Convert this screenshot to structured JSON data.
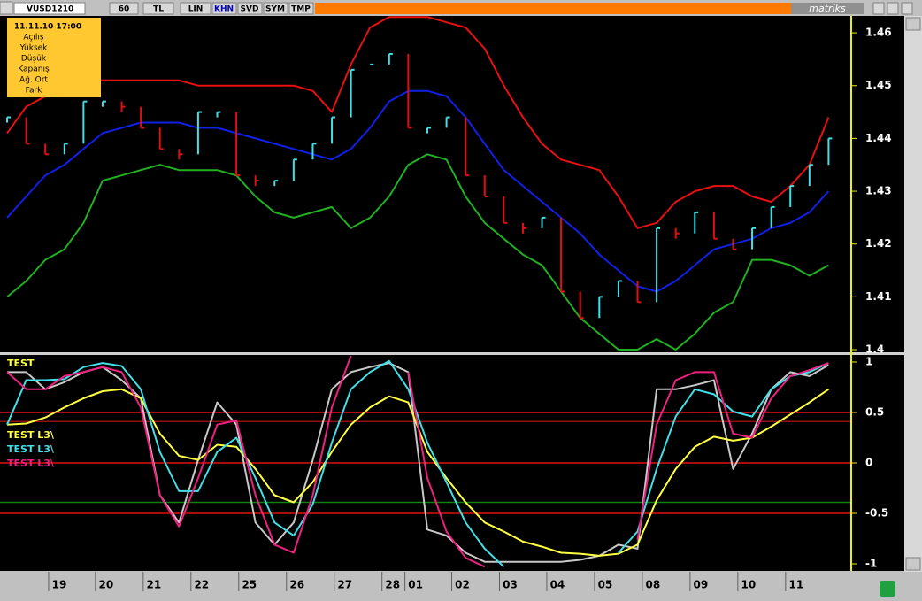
{
  "toolbar": [
    "VUSD1210",
    "60",
    "TL",
    "LIN",
    "KHN",
    "SVD",
    "SYM",
    "TMP"
  ],
  "brand": "matriks",
  "info_box": {
    "date": "11.11.10 17:00",
    "fields": [
      "Açılış",
      "Yüksek",
      "Düşük",
      "Kapanış",
      "Ağ. Ort",
      "Fark"
    ]
  },
  "chart_data": [
    {
      "type": "line",
      "x": [
        0,
        4,
        8,
        12,
        16,
        20,
        24,
        28,
        32,
        36,
        40,
        44,
        48,
        52,
        56,
        60,
        64,
        68,
        72,
        76,
        80,
        84,
        88,
        92,
        96,
        100,
        104,
        108,
        112,
        116,
        120,
        124,
        128,
        132,
        136,
        140,
        144,
        148,
        152,
        156,
        160,
        164,
        168,
        172
      ],
      "xlim": [
        0,
        176
      ],
      "ylim": [
        1.3995,
        1.4632
      ],
      "yticks": [
        1.4,
        1.41,
        1.42,
        1.43,
        1.44,
        1.45,
        1.46
      ],
      "series": [
        {
          "color": "#e81010",
          "values": [
            1.441,
            1.446,
            1.448,
            1.449,
            1.451,
            1.451,
            1.451,
            1.451,
            1.451,
            1.451,
            1.45,
            1.45,
            1.45,
            1.45,
            1.45,
            1.45,
            1.449,
            1.445,
            1.454,
            1.461,
            1.463,
            1.463,
            1.463,
            1.462,
            1.461,
            1.457,
            1.45,
            1.444,
            1.439,
            1.436,
            1.435,
            1.434,
            1.429,
            1.423,
            1.424,
            1.428,
            1.43,
            1.431,
            1.431,
            1.429,
            1.428,
            1.431,
            1.435,
            1.444
          ]
        },
        {
          "color": "#1020e8",
          "values": [
            1.425,
            1.429,
            1.433,
            1.435,
            1.438,
            1.441,
            1.442,
            1.443,
            1.443,
            1.443,
            1.442,
            1.442,
            1.441,
            1.44,
            1.439,
            1.438,
            1.437,
            1.436,
            1.438,
            1.442,
            1.447,
            1.449,
            1.449,
            1.448,
            1.444,
            1.439,
            1.434,
            1.431,
            1.428,
            1.425,
            1.422,
            1.418,
            1.415,
            1.412,
            1.411,
            1.413,
            1.416,
            1.419,
            1.42,
            1.421,
            1.423,
            1.424,
            1.426,
            1.43
          ]
        },
        {
          "color": "#20b020",
          "values": [
            1.41,
            1.413,
            1.417,
            1.419,
            1.424,
            1.432,
            1.433,
            1.434,
            1.435,
            1.434,
            1.434,
            1.434,
            1.433,
            1.429,
            1.426,
            1.425,
            1.426,
            1.427,
            1.423,
            1.425,
            1.429,
            1.435,
            1.437,
            1.436,
            1.429,
            1.424,
            1.421,
            1.418,
            1.416,
            1.411,
            1.406,
            1.403,
            1.4,
            1.4,
            1.402,
            1.4,
            1.403,
            1.407,
            1.409,
            1.417,
            1.417,
            1.416,
            1.414,
            1.416
          ]
        },
        {
          "color": "#40e0e8",
          "down_color": "#e01010",
          "style": "bars",
          "values": [
            1.444,
            1.439,
            1.437,
            1.439,
            1.447,
            1.447,
            1.446,
            1.442,
            1.438,
            1.437,
            1.445,
            1.445,
            1.433,
            1.432,
            1.432,
            1.436,
            1.439,
            1.444,
            1.453,
            1.454,
            1.456,
            1.442,
            1.442,
            1.444,
            1.433,
            1.429,
            1.424,
            1.423,
            1.425,
            1.411,
            1.406,
            1.41,
            1.413,
            1.409,
            1.423,
            1.422,
            1.426,
            1.421,
            1.419,
            1.423,
            1.427,
            1.431,
            1.435,
            1.44
          ]
        }
      ]
    },
    {
      "type": "line",
      "x": [
        0,
        4,
        8,
        12,
        16,
        20,
        24,
        28,
        32,
        36,
        40,
        44,
        48,
        52,
        56,
        60,
        64,
        68,
        72,
        76,
        80,
        84,
        88,
        92,
        96,
        100,
        104,
        108,
        112,
        116,
        120,
        124,
        128,
        132,
        136,
        140,
        144,
        148,
        152,
        156,
        160,
        164,
        168,
        172
      ],
      "xlim": [
        0,
        176
      ],
      "xticks": [
        {
          "value": 8.7,
          "label": "19"
        },
        {
          "value": 18.5,
          "label": "20"
        },
        {
          "value": 28.5,
          "label": "21"
        },
        {
          "value": 38.5,
          "label": "22"
        },
        {
          "value": 48.5,
          "label": "25"
        },
        {
          "value": 58.5,
          "label": "26"
        },
        {
          "value": 68.5,
          "label": "27"
        },
        {
          "value": 78.5,
          "label": "28"
        },
        {
          "value": 83.3,
          "label": "01"
        },
        {
          "value": 93.1,
          "label": "02"
        },
        {
          "value": 103.1,
          "label": "03"
        },
        {
          "value": 113,
          "label": "04"
        },
        {
          "value": 123,
          "label": "05"
        },
        {
          "value": 133,
          "label": "08"
        },
        {
          "value": 143,
          "label": "09"
        },
        {
          "value": 153,
          "label": "10"
        },
        {
          "value": 163,
          "label": "11"
        }
      ],
      "ylim": [
        -1.07,
        1.07
      ],
      "yticks": [
        1,
        0.5,
        0,
        -0.5,
        -1
      ],
      "reference_lines": [
        {
          "value": 0.5,
          "color": "#e01010"
        },
        {
          "value": 0.41,
          "color": "#901010"
        },
        {
          "value": 0,
          "color": "#e01010"
        },
        {
          "value": -0.39,
          "color": "#108010"
        },
        {
          "value": -0.5,
          "color": "#e01010"
        }
      ],
      "legend": [
        {
          "label": "TEST",
          "color": "#ffff40"
        },
        {
          "label": "TEST L3\\",
          "color": "#ffff40"
        },
        {
          "label": "TEST L3\\",
          "color": "#40e0e8"
        },
        {
          "label": "TEST L3\\",
          "color": "#f02080"
        }
      ],
      "series": [
        {
          "color": "#c8c8c8",
          "values": [
            0.9,
            0.9,
            0.73,
            0.8,
            0.9,
            0.95,
            0.82,
            0.64,
            -0.32,
            -0.59,
            0.03,
            0.6,
            0.38,
            -0.59,
            -0.81,
            -0.59,
            0.03,
            0.73,
            0.9,
            0.95,
            0.99,
            0.9,
            -0.66,
            -0.72,
            -0.89,
            -0.98,
            -0.98,
            -0.98,
            -0.98,
            -0.98,
            -0.96,
            -0.92,
            -0.81,
            -0.85,
            0.73,
            0.73,
            0.77,
            0.82,
            -0.06,
            0.29,
            0.73,
            0.9,
            0.86,
            0.97
          ]
        },
        {
          "color": "#ffff40",
          "values": [
            0.38,
            0.39,
            0.45,
            0.55,
            0.64,
            0.71,
            0.73,
            0.64,
            0.29,
            0.07,
            0.03,
            0.18,
            0.16,
            -0.06,
            -0.32,
            -0.39,
            -0.19,
            0.11,
            0.38,
            0.55,
            0.66,
            0.6,
            0.11,
            -0.15,
            -0.39,
            -0.59,
            -0.68,
            -0.78,
            -0.83,
            -0.89,
            -0.9,
            -0.92,
            -0.9,
            -0.81,
            -0.37,
            -0.06,
            0.16,
            0.26,
            0.22,
            0.25,
            0.36,
            0.48,
            0.6,
            0.73
          ]
        },
        {
          "color": "#40e0e8",
          "values": [
            0.38,
            0.82,
            0.82,
            0.83,
            0.95,
            0.99,
            0.96,
            0.73,
            0.11,
            -0.28,
            -0.28,
            0.11,
            0.25,
            -0.15,
            -0.59,
            -0.72,
            -0.41,
            0.2,
            0.73,
            0.9,
            1.01,
            0.73,
            0.2,
            -0.19,
            -0.59,
            -0.85,
            -1.03,
            null,
            null,
            null,
            null,
            null,
            -0.89,
            -0.68,
            -0.06,
            0.46,
            0.73,
            0.68,
            0.51,
            0.46,
            0.73,
            0.86,
            0.9,
            0.99
          ]
        },
        {
          "color": "#f02080",
          "values": [
            0.9,
            0.73,
            0.73,
            0.86,
            0.9,
            0.95,
            0.9,
            0.55,
            -0.32,
            -0.63,
            -0.15,
            0.38,
            0.42,
            -0.32,
            -0.81,
            -0.89,
            -0.32,
            0.55,
            1.06,
            null,
            null,
            0.9,
            -0.15,
            -0.68,
            -0.94,
            -1.03,
            null,
            null,
            null,
            null,
            null,
            null,
            null,
            -0.76,
            0.38,
            0.82,
            0.9,
            0.9,
            0.29,
            0.25,
            0.64,
            0.86,
            0.92,
            0.99
          ]
        }
      ]
    }
  ]
}
